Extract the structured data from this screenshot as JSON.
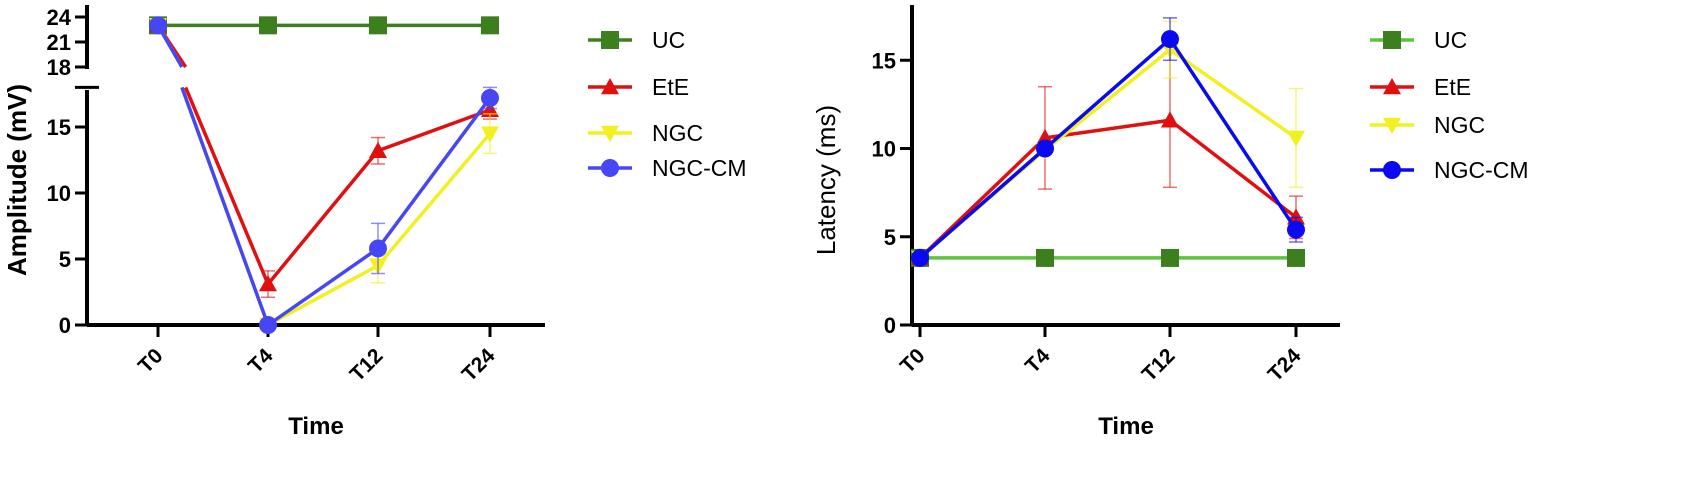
{
  "chart_data": [
    {
      "type": "line",
      "xlabel": "Time",
      "ylabel": "Amplitude (mV)",
      "categories": [
        "T0",
        "T4",
        "T12",
        "T24"
      ],
      "y_axis_break": [
        18,
        18
      ],
      "ylim_lower": [
        0,
        18
      ],
      "ylim_upper": [
        18,
        24
      ],
      "yticks": [
        0,
        5,
        10,
        15,
        18,
        21,
        24
      ],
      "legend_position": "right",
      "series": [
        {
          "name": "UC",
          "color": "#3d7f1f",
          "marker": "square",
          "values": [
            23,
            23,
            23,
            23
          ],
          "errors": [
            0,
            0,
            0,
            0
          ]
        },
        {
          "name": "EtE",
          "color": "#e01010",
          "marker": "triangle-up",
          "values": [
            23,
            3.1,
            13.2,
            16.3
          ],
          "errors": [
            0,
            1.0,
            1.0,
            0.7
          ]
        },
        {
          "name": "NGC",
          "color": "#f2f020",
          "marker": "triangle-down",
          "values": [
            23,
            0,
            4.5,
            14.5
          ],
          "errors": [
            0,
            0.2,
            1.3,
            1.5
          ]
        },
        {
          "name": "NGC-CM",
          "color": "#4646f5",
          "marker": "circle",
          "values": [
            23,
            0,
            5.8,
            17.2
          ],
          "errors": [
            0,
            0.2,
            1.9,
            0.8
          ]
        }
      ]
    },
    {
      "type": "line",
      "xlabel": "Time",
      "ylabel": "Latency (ms)",
      "categories": [
        "T0",
        "T4",
        "T12",
        "T24"
      ],
      "ylim": [
        0,
        18
      ],
      "yticks": [
        0,
        5,
        10,
        15
      ],
      "legend_position": "right",
      "series": [
        {
          "name": "UC",
          "color": "#5cc43a",
          "marker": "square",
          "values": [
            3.8,
            3.8,
            3.8,
            3.8
          ],
          "errors": [
            0,
            0,
            0,
            0
          ]
        },
        {
          "name": "EtE",
          "color": "#e01010",
          "marker": "triangle-up",
          "values": [
            3.8,
            10.6,
            11.6,
            6.1
          ],
          "errors": [
            0,
            2.9,
            3.8,
            1.2
          ]
        },
        {
          "name": "NGC",
          "color": "#f2f020",
          "marker": "triangle-down",
          "values": [
            3.8,
            9.9,
            15.6,
            10.6
          ],
          "errors": [
            0,
            0,
            1.6,
            2.8
          ]
        },
        {
          "name": "NGC-CM",
          "color": "#0a0af0",
          "marker": "circle",
          "values": [
            3.8,
            10.0,
            16.2,
            5.4
          ],
          "errors": [
            0,
            0,
            1.2,
            0.7
          ]
        }
      ]
    }
  ]
}
